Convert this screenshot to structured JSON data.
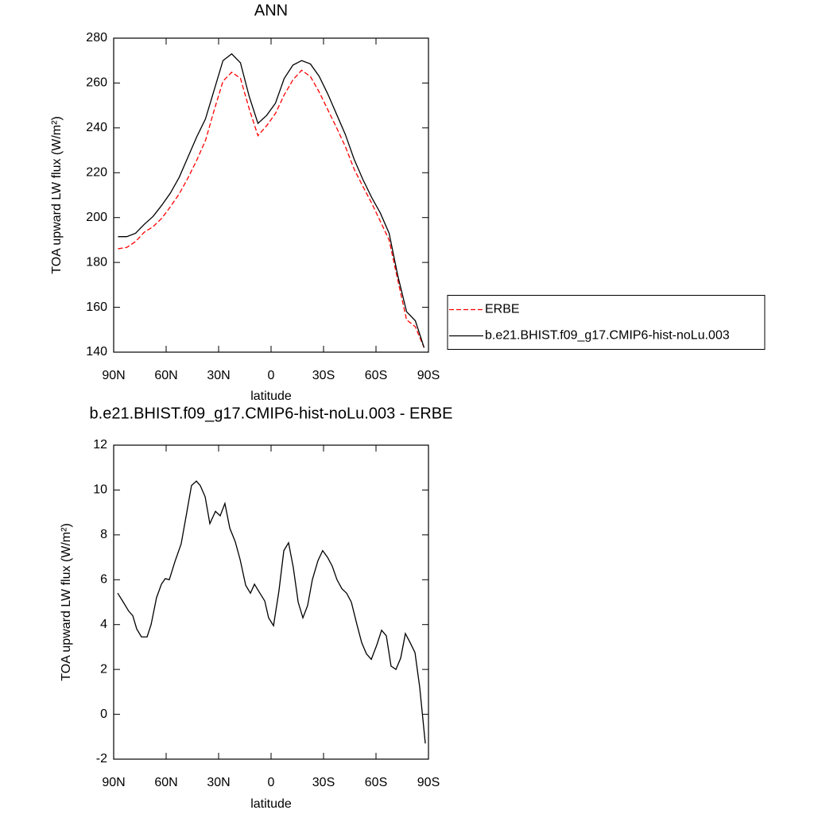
{
  "chart_data": [
    {
      "type": "line",
      "title": "ANN",
      "xlabel": "latitude",
      "ylabel": "TOA upward LW flux (W/m²)",
      "x": [
        87.5,
        82.5,
        77.5,
        72.5,
        67.5,
        62.5,
        57.5,
        52.5,
        47.5,
        42.5,
        37.5,
        32.5,
        27.5,
        22.5,
        17.5,
        12.5,
        7.5,
        2.5,
        -2.5,
        -7.5,
        -12.5,
        -17.5,
        -22.5,
        -27.5,
        -32.5,
        -37.5,
        -42.5,
        -47.5,
        -52.5,
        -57.5,
        -62.5,
        -67.5,
        -72.5,
        -77.5,
        -82.5,
        -87.5
      ],
      "series": [
        {
          "name": "ERBE",
          "color": "#ff0000",
          "dashed": true,
          "values": [
            186.1,
            186.7,
            189.3,
            193.5,
            195.9,
            199.7,
            204.9,
            210.6,
            217.7,
            225.6,
            234.4,
            248,
            260.8,
            264.8,
            262.1,
            248.5,
            236.5,
            241,
            246.4,
            254.7,
            261.4,
            265.7,
            262.9,
            256,
            248,
            240,
            231.6,
            221.6,
            213.9,
            206.5,
            198.3,
            190,
            172,
            154.4,
            151.3,
            142
          ]
        },
        {
          "name": "b.e21.BHIST.f09_g17.CMIP6-hist-noLu.003",
          "color": "#000000",
          "dashed": false,
          "values": [
            191.5,
            191.5,
            193,
            197,
            200.5,
            205.5,
            211,
            218,
            227,
            236,
            244,
            257,
            270,
            273,
            269,
            254,
            242,
            245.6,
            251,
            262,
            268,
            270,
            268.5,
            263,
            255,
            246,
            237,
            226,
            217,
            209,
            202,
            193,
            174,
            158,
            154,
            142
          ]
        }
      ],
      "xlim": [
        90,
        -90
      ],
      "ylim": [
        140,
        280
      ],
      "xticks": [
        {
          "value": 90,
          "label": "90N"
        },
        {
          "value": 60,
          "label": "60N"
        },
        {
          "value": 30,
          "label": "30N"
        },
        0,
        {
          "value": -30,
          "label": "30S"
        },
        {
          "value": -60,
          "label": "60S"
        },
        {
          "value": -90,
          "label": "90S"
        }
      ],
      "yticks": [
        140,
        160,
        180,
        200,
        220,
        240,
        260,
        280
      ],
      "legend": "right"
    },
    {
      "type": "line",
      "title": "b.e21.BHIST.f09_g17.CMIP6-hist-noLu.003 - ERBE",
      "xlabel": "latitude",
      "ylabel": "TOA upward LW flux (W/m²)",
      "x": [
        87.7,
        84.5,
        81.4,
        79.1,
        76.8,
        74.1,
        70.9,
        68.6,
        65.5,
        62.7,
        60.5,
        58.2,
        55.0,
        51.4,
        48.2,
        45.5,
        42.7,
        40.5,
        37.7,
        35.0,
        31.8,
        29.1,
        26.4,
        23.6,
        20.5,
        17.7,
        14.5,
        11.8,
        9.5,
        6.4,
        3.6,
        1.4,
        -1.4,
        -4.5,
        -7.3,
        -10.0,
        -12.7,
        -15.5,
        -18.2,
        -20.9,
        -23.6,
        -26.8,
        -29.5,
        -32.3,
        -35.0,
        -37.7,
        -40.5,
        -43.2,
        -45.9,
        -49.1,
        -51.8,
        -54.5,
        -57.3,
        -60.5,
        -63.2,
        -65.9,
        -68.6,
        -71.4,
        -74.1,
        -76.8,
        -79.5,
        -82.3,
        -85.0,
        -88.2
      ],
      "values": [
        5.4,
        5.0,
        4.6,
        4.4,
        3.8,
        3.45,
        3.45,
        4.0,
        5.2,
        5.8,
        6.05,
        6.0,
        6.8,
        7.6,
        9.0,
        10.2,
        10.4,
        10.2,
        9.7,
        8.5,
        9.05,
        8.85,
        9.4,
        8.3,
        7.7,
        6.9,
        5.75,
        5.4,
        5.8,
        5.4,
        5.05,
        4.3,
        3.95,
        5.5,
        7.3,
        7.65,
        6.55,
        5.0,
        4.3,
        4.85,
        6.0,
        6.85,
        7.3,
        7.0,
        6.6,
        6.0,
        5.6,
        5.4,
        5.0,
        4.0,
        3.2,
        2.7,
        2.45,
        3.1,
        3.75,
        3.5,
        2.15,
        2.0,
        2.5,
        3.6,
        3.2,
        2.75,
        1.2,
        -1.3
      ],
      "color": "#000000",
      "xlim": [
        90,
        -90
      ],
      "ylim": [
        -2,
        12
      ],
      "xticks": [
        {
          "value": 90,
          "label": "90N"
        },
        {
          "value": 60,
          "label": "60N"
        },
        {
          "value": 30,
          "label": "30N"
        },
        0,
        {
          "value": -30,
          "label": "30S"
        },
        {
          "value": -60,
          "label": "60S"
        },
        {
          "value": -90,
          "label": "90S"
        }
      ],
      "yticks": [
        -2,
        0,
        2,
        4,
        6,
        8,
        10,
        12
      ]
    }
  ]
}
